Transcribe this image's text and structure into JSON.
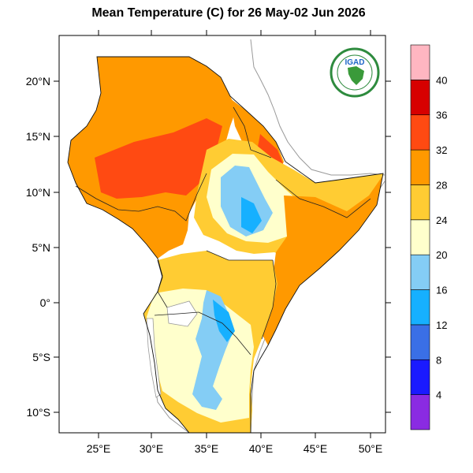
{
  "title": "Mean Temperature (C) for 26 May-02 Jun 2026",
  "logo": {
    "text": "IGAD",
    "icon": "igad-logo-icon"
  },
  "map": {
    "lon_ticks": [
      "25°E",
      "30°E",
      "35°E",
      "40°E",
      "45°E",
      "50°E"
    ],
    "lat_ticks": [
      "20°N",
      "15°N",
      "10°N",
      "5°N",
      "0°",
      "5°S",
      "10°S"
    ]
  },
  "colorbar": {
    "labels": [
      "4",
      "8",
      "12",
      "16",
      "20",
      "24",
      "28",
      "32",
      "36",
      "40"
    ],
    "colors": [
      "#8a2be2",
      "#1a1aff",
      "#3a6fe6",
      "#16b0ff",
      "#84cdf5",
      "#ffffcc",
      "#ffcc33",
      "#ff9900",
      "#ff4a12",
      "#d70000",
      "#ffb6c1"
    ]
  },
  "palette": {
    "sea": "#ffffff",
    "outside_land": "#ffffff",
    "border": "#333333",
    "coast_line": "#999999",
    "water_body": "#ffffff"
  }
}
